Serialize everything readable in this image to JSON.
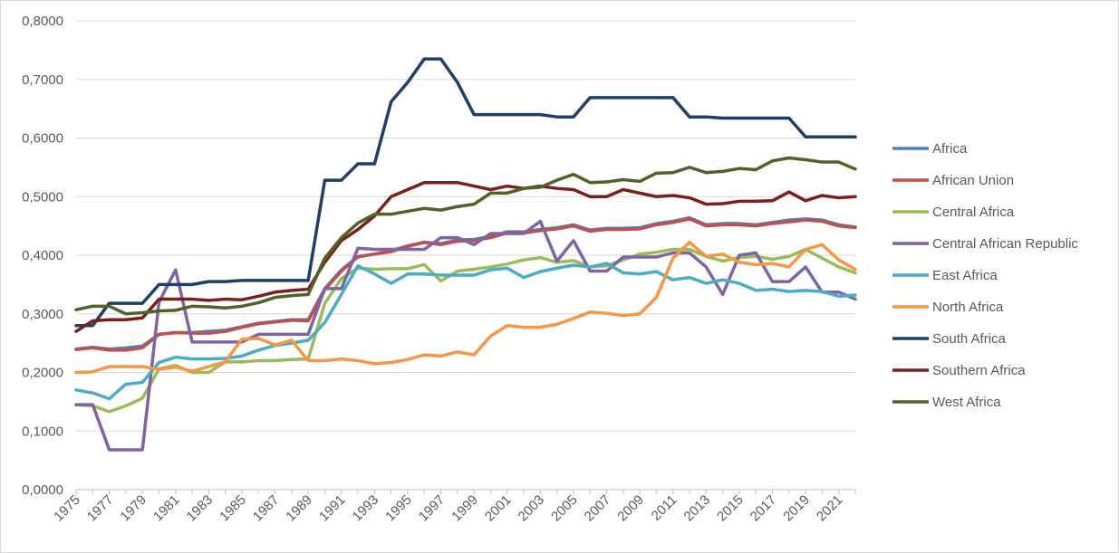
{
  "chart_data": {
    "type": "line",
    "title": "",
    "xlabel": "",
    "ylabel": "",
    "ylim": [
      0,
      0.8
    ],
    "yticks": [
      "0,0000",
      "0,1000",
      "0,2000",
      "0,3000",
      "0,4000",
      "0,5000",
      "0,6000",
      "0,7000",
      "0,8000"
    ],
    "xticks": [
      "1975",
      "1977",
      "1979",
      "1981",
      "1983",
      "1985",
      "1987",
      "1989",
      "1991",
      "1993",
      "1995",
      "1997",
      "1999",
      "2001",
      "2003",
      "2005",
      "2007",
      "2009",
      "2011",
      "2013",
      "2015",
      "2017",
      "2019",
      "2021"
    ],
    "x": [
      1975,
      1976,
      1977,
      1978,
      1979,
      1980,
      1981,
      1982,
      1983,
      1984,
      1985,
      1986,
      1987,
      1988,
      1989,
      1990,
      1991,
      1992,
      1993,
      1994,
      1995,
      1996,
      1997,
      1998,
      1999,
      2000,
      2001,
      2002,
      2003,
      2004,
      2005,
      2006,
      2007,
      2008,
      2009,
      2010,
      2011,
      2012,
      2013,
      2014,
      2015,
      2016,
      2017,
      2018,
      2019,
      2020,
      2021,
      2022
    ],
    "grid": "horizontal",
    "legend_position": "right",
    "series": [
      {
        "name": "Africa",
        "color": "#4f81bd",
        "values": [
          0.24,
          0.243,
          0.24,
          0.242,
          0.245,
          0.265,
          0.268,
          0.268,
          0.27,
          0.272,
          0.278,
          0.284,
          0.287,
          0.29,
          0.29,
          0.343,
          0.375,
          0.398,
          0.402,
          0.408,
          0.416,
          0.422,
          0.42,
          0.426,
          0.427,
          0.432,
          0.44,
          0.44,
          0.444,
          0.447,
          0.452,
          0.443,
          0.446,
          0.446,
          0.447,
          0.454,
          0.458,
          0.464,
          0.452,
          0.454,
          0.454,
          0.452,
          0.456,
          0.46,
          0.462,
          0.46,
          0.452,
          0.448
        ]
      },
      {
        "name": "African Union",
        "color": "#c0504d",
        "values": [
          0.239,
          0.242,
          0.238,
          0.238,
          0.242,
          0.265,
          0.268,
          0.267,
          0.267,
          0.27,
          0.277,
          0.283,
          0.286,
          0.289,
          0.288,
          0.341,
          0.373,
          0.397,
          0.402,
          0.406,
          0.415,
          0.422,
          0.418,
          0.424,
          0.425,
          0.43,
          0.438,
          0.438,
          0.442,
          0.445,
          0.45,
          0.441,
          0.444,
          0.444,
          0.445,
          0.452,
          0.456,
          0.462,
          0.45,
          0.452,
          0.452,
          0.45,
          0.454,
          0.457,
          0.46,
          0.458,
          0.45,
          0.447
        ]
      },
      {
        "name": "Central Africa",
        "color": "#9bbb59",
        "values": [
          0.145,
          0.143,
          0.133,
          0.143,
          0.156,
          0.206,
          0.212,
          0.2,
          0.2,
          0.218,
          0.218,
          0.22,
          0.22,
          0.222,
          0.223,
          0.318,
          0.36,
          0.378,
          0.376,
          0.377,
          0.377,
          0.384,
          0.356,
          0.373,
          0.376,
          0.38,
          0.385,
          0.392,
          0.396,
          0.388,
          0.391,
          0.38,
          0.382,
          0.392,
          0.402,
          0.405,
          0.41,
          0.41,
          0.398,
          0.39,
          0.396,
          0.398,
          0.393,
          0.398,
          0.41,
          0.395,
          0.38,
          0.37
        ]
      },
      {
        "name": "Central African Republic",
        "color": "#8064a2",
        "values": [
          0.145,
          0.145,
          0.068,
          0.068,
          0.068,
          0.32,
          0.375,
          0.252,
          0.252,
          0.252,
          0.252,
          0.265,
          0.265,
          0.265,
          0.265,
          0.343,
          0.343,
          0.412,
          0.41,
          0.41,
          0.41,
          0.41,
          0.43,
          0.43,
          0.418,
          0.437,
          0.437,
          0.437,
          0.458,
          0.39,
          0.425,
          0.373,
          0.373,
          0.397,
          0.397,
          0.397,
          0.404,
          0.404,
          0.38,
          0.333,
          0.4,
          0.404,
          0.355,
          0.355,
          0.38,
          0.337,
          0.337,
          0.325
        ]
      },
      {
        "name": "East Africa",
        "color": "#4bacc6",
        "values": [
          0.17,
          0.165,
          0.155,
          0.18,
          0.183,
          0.217,
          0.226,
          0.223,
          0.223,
          0.224,
          0.228,
          0.238,
          0.246,
          0.25,
          0.255,
          0.285,
          0.333,
          0.382,
          0.368,
          0.352,
          0.368,
          0.368,
          0.366,
          0.366,
          0.366,
          0.375,
          0.378,
          0.362,
          0.372,
          0.378,
          0.383,
          0.38,
          0.386,
          0.37,
          0.368,
          0.372,
          0.358,
          0.362,
          0.352,
          0.358,
          0.352,
          0.34,
          0.342,
          0.338,
          0.34,
          0.338,
          0.33,
          0.332
        ]
      },
      {
        "name": "North Africa",
        "color": "#f79646",
        "values": [
          0.2,
          0.201,
          0.21,
          0.21,
          0.21,
          0.205,
          0.209,
          0.202,
          0.21,
          0.218,
          0.257,
          0.258,
          0.247,
          0.255,
          0.22,
          0.22,
          0.223,
          0.22,
          0.215,
          0.217,
          0.222,
          0.23,
          0.228,
          0.235,
          0.23,
          0.262,
          0.28,
          0.277,
          0.277,
          0.282,
          0.292,
          0.303,
          0.301,
          0.297,
          0.3,
          0.328,
          0.395,
          0.422,
          0.398,
          0.402,
          0.388,
          0.384,
          0.386,
          0.38,
          0.41,
          0.418,
          0.392,
          0.376
        ]
      },
      {
        "name": "South Africa",
        "color": "#1f3f66",
        "values": [
          0.28,
          0.28,
          0.318,
          0.318,
          0.318,
          0.35,
          0.35,
          0.35,
          0.355,
          0.355,
          0.357,
          0.357,
          0.357,
          0.357,
          0.357,
          0.528,
          0.528,
          0.556,
          0.556,
          0.662,
          0.695,
          0.735,
          0.735,
          0.695,
          0.64,
          0.64,
          0.64,
          0.64,
          0.64,
          0.636,
          0.636,
          0.669,
          0.669,
          0.669,
          0.669,
          0.669,
          0.669,
          0.636,
          0.636,
          0.634,
          0.634,
          0.634,
          0.634,
          0.634,
          0.602,
          0.602,
          0.602,
          0.602
        ]
      },
      {
        "name": "Southern Africa",
        "color": "#7b1f1f",
        "values": [
          0.27,
          0.288,
          0.29,
          0.29,
          0.293,
          0.325,
          0.325,
          0.325,
          0.323,
          0.325,
          0.324,
          0.33,
          0.337,
          0.34,
          0.342,
          0.388,
          0.425,
          0.444,
          0.467,
          0.5,
          0.512,
          0.524,
          0.524,
          0.524,
          0.518,
          0.512,
          0.518,
          0.514,
          0.518,
          0.514,
          0.512,
          0.5,
          0.5,
          0.512,
          0.506,
          0.5,
          0.502,
          0.498,
          0.487,
          0.488,
          0.492,
          0.492,
          0.493,
          0.508,
          0.493,
          0.502,
          0.498,
          0.5
        ]
      },
      {
        "name": "West Africa",
        "color": "#4f6228",
        "values": [
          0.307,
          0.313,
          0.313,
          0.3,
          0.302,
          0.305,
          0.306,
          0.313,
          0.312,
          0.31,
          0.313,
          0.319,
          0.328,
          0.331,
          0.333,
          0.395,
          0.43,
          0.455,
          0.47,
          0.47,
          0.475,
          0.48,
          0.477,
          0.483,
          0.487,
          0.506,
          0.506,
          0.514,
          0.516,
          0.528,
          0.538,
          0.524,
          0.525,
          0.529,
          0.526,
          0.54,
          0.541,
          0.55,
          0.541,
          0.543,
          0.548,
          0.546,
          0.561,
          0.566,
          0.563,
          0.559,
          0.559,
          0.547
        ]
      }
    ]
  }
}
